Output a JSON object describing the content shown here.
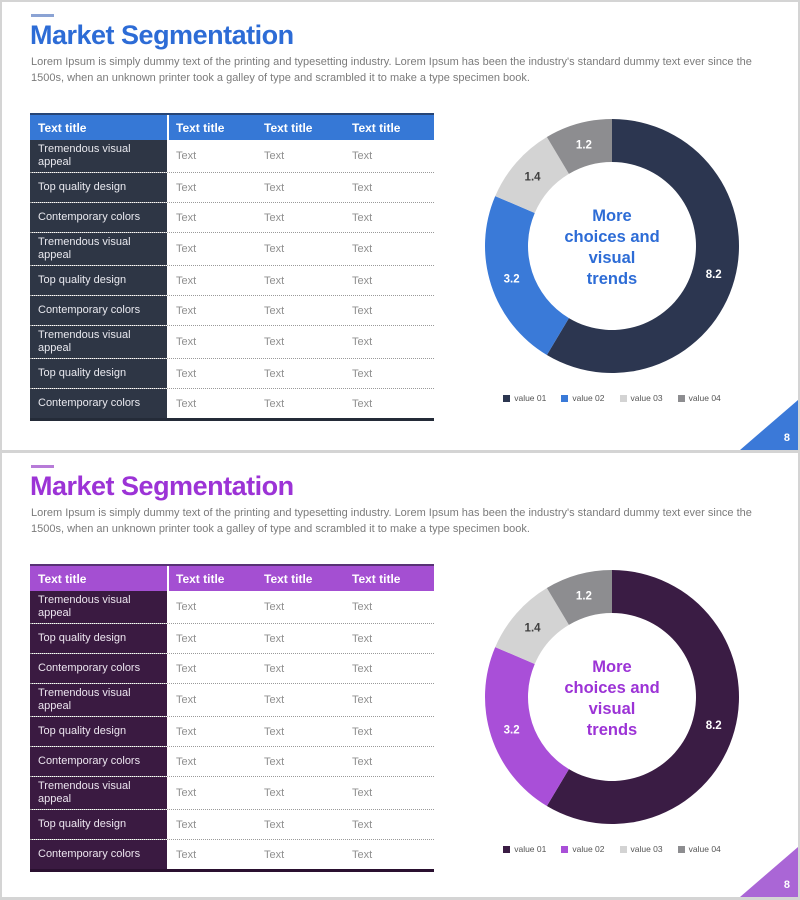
{
  "deck": {
    "canvas_border_color": "#d4d4d4",
    "slide_background": "#ffffff"
  },
  "slides": [
    {
      "name": "market-segmentation-blue",
      "title": "Market Segmentation",
      "body_text": "Lorem Ipsum is simply dummy text of the printing and typesetting industry. Lorem Ipsum has been the industry's standard dummy text ever since the 1500s, when an unknown printer took a galley of type and scrambled it to make a type specimen book.",
      "page_number": "8",
      "colors": {
        "accent": "#2d6cd6",
        "title_dash": "#8ba3d4",
        "table_header_bg": "#3678d6",
        "label_column_bg": "#2e3645",
        "label_column_text": "#e9e9ef",
        "cell_text": "#8f8f8f",
        "body_text_color": "#7b7b7b",
        "table_bottom_border": "#242b38",
        "page_triangle": "#3b79d8",
        "page_number_text": "#ffffff"
      },
      "table": {
        "headers": [
          "Text title",
          "Text title",
          "Text title",
          "Text title"
        ],
        "rows": [
          {
            "label": "Tremendous visual appeal",
            "cells": [
              "Text",
              "Text",
              "Text"
            ]
          },
          {
            "label": "Top quality design",
            "cells": [
              "Text",
              "Text",
              "Text"
            ]
          },
          {
            "label": "Contemporary colors",
            "cells": [
              "Text",
              "Text",
              "Text"
            ]
          },
          {
            "label": "Tremendous visual appeal",
            "cells": [
              "Text",
              "Text",
              "Text"
            ]
          },
          {
            "label": "Top quality design",
            "cells": [
              "Text",
              "Text",
              "Text"
            ]
          },
          {
            "label": "Contemporary colors",
            "cells": [
              "Text",
              "Text",
              "Text"
            ]
          },
          {
            "label": "Tremendous visual appeal",
            "cells": [
              "Text",
              "Text",
              "Text"
            ]
          },
          {
            "label": "Top quality design",
            "cells": [
              "Text",
              "Text",
              "Text"
            ]
          },
          {
            "label": "Contemporary colors",
            "cells": [
              "Text",
              "Text",
              "Text"
            ]
          }
        ]
      },
      "chart_data": {
        "type": "pie",
        "subtype": "donut",
        "labels": [
          "value 01",
          "value 02",
          "value 03",
          "value 04"
        ],
        "values": [
          8.2,
          3.2,
          1.4,
          1.2
        ],
        "value_labels": [
          "8.2",
          "3.2",
          "1.4",
          "1.2"
        ],
        "colors": [
          "#2c3650",
          "#3a7ad8",
          "#d3d3d3",
          "#8d8d90"
        ],
        "value_label_colors": [
          "#ffffff",
          "#ffffff",
          "#404040",
          "#ffffff"
        ],
        "center_lines": [
          "More",
          "choices and",
          "visual",
          "trends"
        ],
        "start_angle_deg": 0,
        "direction": "clockwise",
        "legend_position": "bottom"
      }
    },
    {
      "name": "market-segmentation-purple",
      "title": "Market Segmentation",
      "body_text": "Lorem Ipsum is simply dummy text of the printing and typesetting industry. Lorem Ipsum has been the industry's standard dummy text ever since the 1500s, when an unknown printer took a galley of type and scrambled it to make a type specimen book.",
      "page_number": "8",
      "colors": {
        "accent": "#9c33d6",
        "title_dash": "#b77bd8",
        "table_header_bg": "#a44fd2",
        "label_column_bg": "#3a1a41",
        "label_column_text": "#ece5ef",
        "cell_text": "#8f8f8f",
        "body_text_color": "#7b7b7b",
        "table_bottom_border": "#2a1030",
        "page_triangle": "#aa66d6",
        "page_number_text": "#ffffff"
      },
      "table": {
        "headers": [
          "Text title",
          "Text title",
          "Text title",
          "Text title"
        ],
        "rows": [
          {
            "label": "Tremendous visual appeal",
            "cells": [
              "Text",
              "Text",
              "Text"
            ]
          },
          {
            "label": "Top quality design",
            "cells": [
              "Text",
              "Text",
              "Text"
            ]
          },
          {
            "label": "Contemporary colors",
            "cells": [
              "Text",
              "Text",
              "Text"
            ]
          },
          {
            "label": "Tremendous visual appeal",
            "cells": [
              "Text",
              "Text",
              "Text"
            ]
          },
          {
            "label": "Top quality design",
            "cells": [
              "Text",
              "Text",
              "Text"
            ]
          },
          {
            "label": "Contemporary colors",
            "cells": [
              "Text",
              "Text",
              "Text"
            ]
          },
          {
            "label": "Tremendous visual appeal",
            "cells": [
              "Text",
              "Text",
              "Text"
            ]
          },
          {
            "label": "Top quality design",
            "cells": [
              "Text",
              "Text",
              "Text"
            ]
          },
          {
            "label": "Contemporary colors",
            "cells": [
              "Text",
              "Text",
              "Text"
            ]
          }
        ]
      },
      "chart_data": {
        "type": "pie",
        "subtype": "donut",
        "labels": [
          "value 01",
          "value 02",
          "value 03",
          "value 04"
        ],
        "values": [
          8.2,
          3.2,
          1.4,
          1.2
        ],
        "value_labels": [
          "8.2",
          "3.2",
          "1.4",
          "1.2"
        ],
        "colors": [
          "#3a1c44",
          "#a94fd8",
          "#d3d3d3",
          "#8d8d90"
        ],
        "value_label_colors": [
          "#ffffff",
          "#ffffff",
          "#404040",
          "#ffffff"
        ],
        "center_lines": [
          "More",
          "choices and",
          "visual",
          "trends"
        ],
        "start_angle_deg": 0,
        "direction": "clockwise",
        "legend_position": "bottom"
      }
    }
  ]
}
